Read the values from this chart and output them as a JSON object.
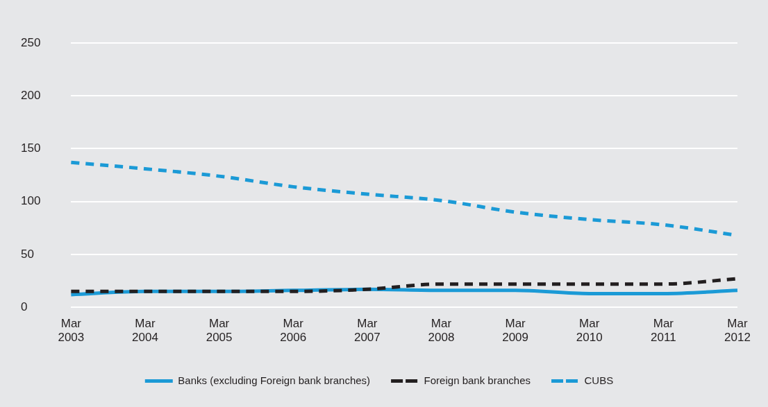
{
  "chart_data": {
    "type": "line",
    "categories": [
      "Mar 2003",
      "Mar 2004",
      "Mar 2005",
      "Mar 2006",
      "Mar 2007",
      "Mar 2008",
      "Mar 2009",
      "Mar 2010",
      "Mar 2011",
      "Mar 2012"
    ],
    "series": [
      {
        "name": "Banks (excluding Foreign bank branches)",
        "color": "#1b9ad6",
        "line_style": "solid",
        "values": [
          12,
          15,
          15,
          16,
          17,
          16,
          16,
          13,
          13,
          16
        ]
      },
      {
        "name": "Foreign bank branches",
        "color": "#231f20",
        "line_style": "dashed",
        "values": [
          15,
          15,
          15,
          15,
          17,
          22,
          22,
          22,
          22,
          27
        ]
      },
      {
        "name": "CUBS",
        "color": "#1b9ad6",
        "line_style": "dashed",
        "values": [
          137,
          131,
          124,
          114,
          107,
          101,
          90,
          83,
          78,
          68
        ]
      }
    ],
    "ylim": [
      0,
      250
    ],
    "yticks": [
      0,
      50,
      100,
      150,
      200,
      250
    ],
    "grid": "y",
    "legend": "bottom",
    "marker": "none"
  }
}
